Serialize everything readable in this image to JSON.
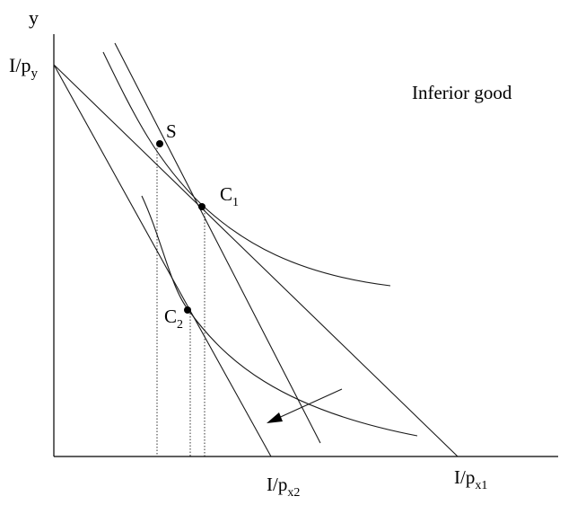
{
  "labels": {
    "y_axis": "y",
    "y_intercept_main": "I/p",
    "y_intercept_sub": "y",
    "title": "Inferior good",
    "point_s": "S",
    "point_c1_main": "C",
    "point_c1_sub": "1",
    "point_c2_main": "C",
    "point_c2_sub": "2",
    "x_intercept_2_main": "I/p",
    "x_intercept_2_sub": "x2",
    "x_intercept_1_main": "I/p",
    "x_intercept_1_sub": "x1"
  }
}
